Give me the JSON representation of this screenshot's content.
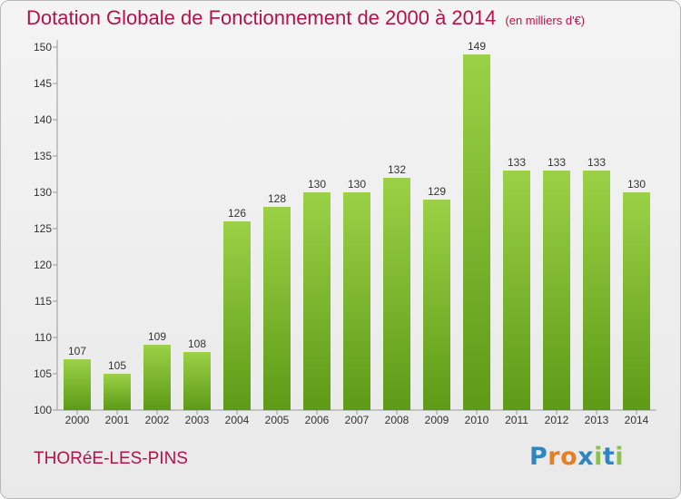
{
  "header": {
    "title": "Dotation Globale de Fonctionnement de 2000 à 2014",
    "unit": "(en milliers d'€)"
  },
  "footer": {
    "town": "THORéE-LES-PINS",
    "logo": [
      "P",
      "r",
      "o",
      "x",
      "i",
      "t",
      "i"
    ],
    "logo_colors": [
      "#2e86c1",
      "#e67e22",
      "#e67e22",
      "#2e86c1",
      "#8bc34a",
      "#2e86c1",
      "#8bc34a"
    ]
  },
  "chart_data": {
    "type": "bar",
    "categories": [
      "2000",
      "2001",
      "2002",
      "2003",
      "2004",
      "2005",
      "2006",
      "2007",
      "2008",
      "2009",
      "2010",
      "2011",
      "2012",
      "2013",
      "2014"
    ],
    "values": [
      107,
      105,
      109,
      108,
      126,
      128,
      130,
      130,
      132,
      129,
      149,
      133,
      133,
      133,
      130
    ],
    "ylim": [
      100,
      150
    ],
    "yticks": [
      100,
      105,
      110,
      115,
      120,
      125,
      130,
      135,
      140,
      145,
      150
    ],
    "grid": false,
    "bar_color_top": "#9bd146",
    "bar_color_bottom": "#5e9a17"
  }
}
